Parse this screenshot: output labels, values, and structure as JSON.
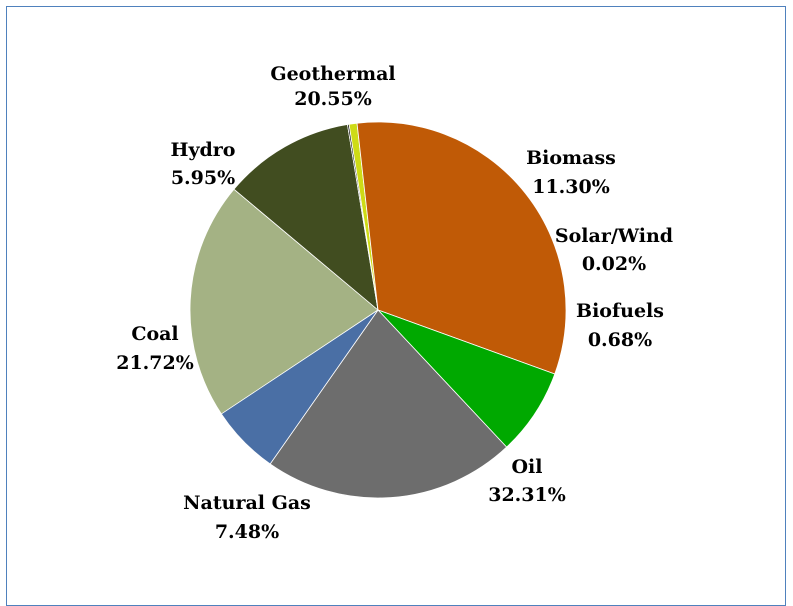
{
  "chart_data": {
    "type": "pie",
    "slices": [
      {
        "label": "Geothermal",
        "value": 20.55,
        "display": "20.55%",
        "color": "#a4b284"
      },
      {
        "label": "Biomass",
        "value": 11.3,
        "display": "11.30%",
        "color": "#414d20"
      },
      {
        "label": "Solar/Wind",
        "value": 0.02,
        "display": "0.02%",
        "color": "#0d0d0d"
      },
      {
        "label": "Biofuels",
        "value": 0.68,
        "display": "0.68%",
        "color": "#cedb16"
      },
      {
        "label": "Oil",
        "value": 32.31,
        "display": "32.31%",
        "color": "#c05a06"
      },
      {
        "label": "Natural Gas",
        "value": 7.48,
        "display": "7.48%",
        "color": "#00a900"
      },
      {
        "label": "Coal",
        "value": 21.72,
        "display": "21.72%",
        "color": "#6d6d6d"
      },
      {
        "label": "Hydro",
        "value": 5.95,
        "display": "5.95%",
        "color": "#4a6fa5"
      }
    ],
    "legend": "none"
  }
}
